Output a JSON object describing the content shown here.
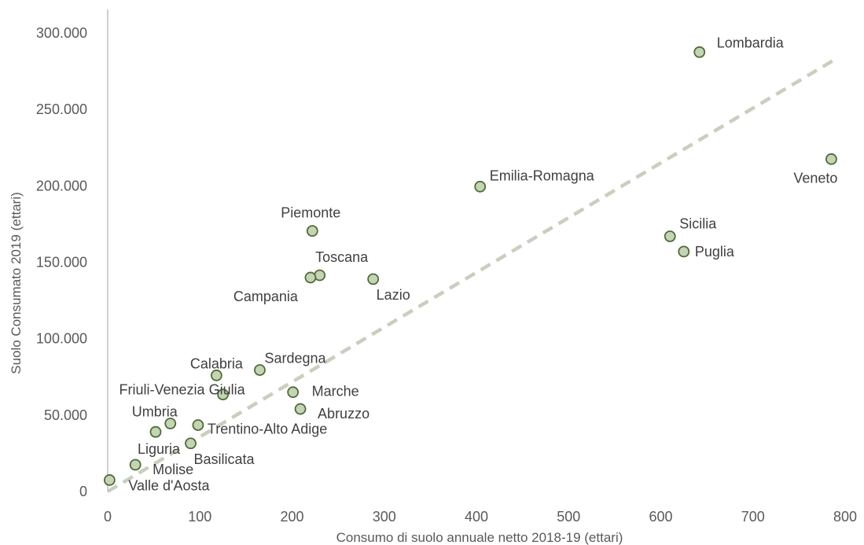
{
  "chart_data": {
    "type": "scatter",
    "title": "",
    "xlabel": "Consumo di suolo annuale netto 2018-19 (ettari)",
    "ylabel": "Suolo Consumato 2019 (ettari)",
    "xlim": [
      0,
      800
    ],
    "ylim": [
      0,
      300000
    ],
    "xticks": [
      0,
      100,
      200,
      300,
      400,
      500,
      600,
      700,
      800
    ],
    "yticks": [
      0,
      50000,
      100000,
      150000,
      200000,
      250000,
      300000
    ],
    "xtick_labels": [
      "0",
      "100",
      "200",
      "300",
      "400",
      "500",
      "600",
      "700",
      "800"
    ],
    "ytick_labels": [
      "0",
      "50.000",
      "100.000",
      "150.000",
      "200.000",
      "250.000",
      "300.000"
    ],
    "grid": false,
    "legend": "none",
    "trendline": {
      "type": "linear",
      "style": "dashed",
      "x": [
        0,
        787
      ],
      "y": [
        0,
        282000
      ]
    },
    "points": [
      {
        "label": "Lombardia",
        "x": 642,
        "y": 287500
      },
      {
        "label": "Veneto",
        "x": 785,
        "y": 217500
      },
      {
        "label": "Emilia-Romagna",
        "x": 404,
        "y": 199500
      },
      {
        "label": "Sicilia",
        "x": 610,
        "y": 167000
      },
      {
        "label": "Puglia",
        "x": 625,
        "y": 157000
      },
      {
        "label": "Piemonte",
        "x": 222,
        "y": 170500
      },
      {
        "label": "Toscana",
        "x": 230,
        "y": 141500
      },
      {
        "label": "Campania",
        "x": 220,
        "y": 140000
      },
      {
        "label": "Lazio",
        "x": 288,
        "y": 139000
      },
      {
        "label": "Sardegna",
        "x": 165,
        "y": 79500
      },
      {
        "label": "Calabria",
        "x": 118,
        "y": 76000
      },
      {
        "label": "Friuli-Venezia Giulia",
        "x": 125,
        "y": 63500
      },
      {
        "label": "Marche",
        "x": 201,
        "y": 65000
      },
      {
        "label": "Abruzzo",
        "x": 209,
        "y": 54000
      },
      {
        "label": "Trentino-Alto Adige",
        "x": 98,
        "y": 43500
      },
      {
        "label": "Umbria",
        "x": 68,
        "y": 44500
      },
      {
        "label": "Liguria",
        "x": 52,
        "y": 39000
      },
      {
        "label": "Basilicata",
        "x": 90,
        "y": 31500
      },
      {
        "label": "Molise",
        "x": 30,
        "y": 17500
      },
      {
        "label": "Valle d'Aosta",
        "x": 2,
        "y": 7500
      }
    ]
  },
  "colors": {
    "marker_fill": "#c5d4b5",
    "marker_stroke": "#4f6b3a",
    "trendline": "#c9cfbf",
    "axis": "#bfbfbf",
    "text": "#595959"
  }
}
